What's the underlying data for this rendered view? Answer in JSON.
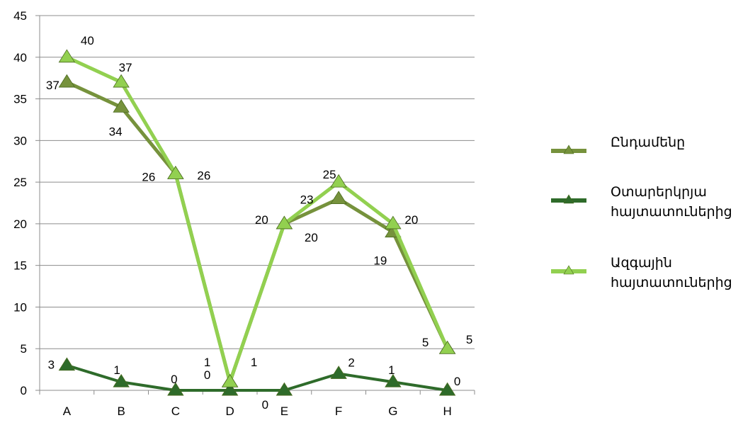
{
  "chart_data": {
    "type": "line",
    "categories": [
      "A",
      "B",
      "C",
      "D",
      "E",
      "F",
      "G",
      "H"
    ],
    "ylim": [
      0,
      45
    ],
    "yticks": [
      0,
      5,
      10,
      15,
      20,
      25,
      30,
      35,
      40,
      45
    ],
    "grid": true,
    "legend_position": "right",
    "series": [
      {
        "name": "Ընդամենը",
        "values": [
          37,
          34,
          26,
          1,
          20,
          23,
          19,
          5
        ],
        "color": "#76923C",
        "marker": "triangle"
      },
      {
        "name": "Օտարերկրյա հայտատուներից",
        "values": [
          3,
          1,
          0,
          0,
          0,
          2,
          1,
          0
        ],
        "color": "#2E6B2A",
        "marker": "triangle"
      },
      {
        "name": "Ազգային հայտատուներից",
        "values": [
          40,
          37,
          26,
          1,
          20,
          25,
          20,
          5
        ],
        "color": "#92D050",
        "marker": "triangle"
      }
    ],
    "data_labels": [
      [
        "37",
        "34",
        "26",
        "1",
        "20",
        "23",
        "19",
        "5"
      ],
      [
        "3",
        "1",
        "0",
        "0",
        "0",
        "2",
        "1",
        "0"
      ],
      [
        "40",
        "37",
        "26",
        "1",
        "20",
        "25",
        "20",
        "5"
      ]
    ]
  }
}
